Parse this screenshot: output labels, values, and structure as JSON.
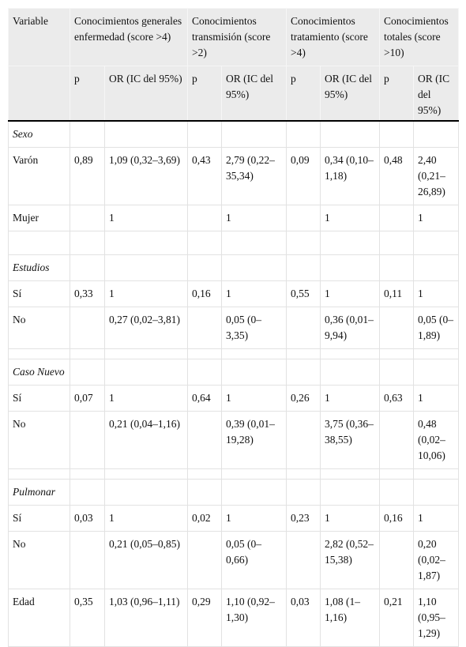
{
  "table": {
    "header": {
      "variable": "Variable",
      "groups": [
        "Conocimientos generales enfermedad (score >4)",
        "Conocimientos transmisión (score >2)",
        "Conocimientos tratamiento (score >4)",
        "Conocimientos totales (score >10)"
      ],
      "subheaders": [
        "p",
        "OR (IC del 95%)",
        "p",
        "OR (IC del 95%)",
        "p",
        "OR (IC del 95%)",
        "p",
        "OR (IC del 95%)"
      ]
    },
    "rows": [
      {
        "section": "Sexo"
      },
      {
        "cells": [
          "Varón",
          "0,89",
          "1,09 (0,32–3,69)",
          "0,43",
          "2,79 (0,22–35,34)",
          "0,09",
          "0,34 (0,10–1,18)",
          "0,48",
          "2,40 (0,21–26,89)"
        ]
      },
      {
        "cells": [
          "Mujer",
          null,
          "1",
          null,
          "1",
          null,
          "1",
          null,
          "1"
        ]
      },
      {
        "section": "Estudios"
      },
      {
        "cells": [
          "Sí",
          "0,33",
          "1",
          "0,16",
          "1",
          "0,55",
          "1",
          "0,11",
          "1"
        ]
      },
      {
        "cells": [
          "No",
          null,
          "0,27 (0,02–3,81)",
          null,
          "0,05 (0–3,35)",
          null,
          "0,36 (0,01–9,94)",
          null,
          "0,05 (0–1,89)"
        ]
      },
      {
        "section": "Caso Nuevo"
      },
      {
        "cells": [
          "Sí",
          "0,07",
          "1",
          "0,64",
          "1",
          "0,26",
          "1",
          "0,63",
          "1"
        ]
      },
      {
        "cells": [
          "No",
          null,
          "0,21 (0,04–1,16)",
          null,
          "0,39 (0,01–19,28)",
          null,
          "3,75 (0,36–38,55)",
          null,
          "0,48 (0,02–10,06)"
        ]
      },
      {
        "section": "Pulmonar"
      },
      {
        "cells": [
          "Sí",
          "0,03",
          "1",
          "0,02",
          "1",
          "0,23",
          "1",
          "0,16",
          "1"
        ]
      },
      {
        "cells": [
          "No",
          null,
          "0,21 (0,05–0,85)",
          null,
          "0,05 (0–0,66)",
          null,
          "2,82 (0,52–15,38)",
          null,
          "0,20 (0,02–1,87)"
        ]
      },
      {
        "cells": [
          "Edad",
          "0,35",
          "1,03 (0,96–1,11)",
          "0,29",
          "1,10 (0,92–1,30)",
          "0,03",
          "1,08 (1–1,16)",
          "0,21",
          "1,10 (0,95–1,29)"
        ]
      }
    ]
  }
}
